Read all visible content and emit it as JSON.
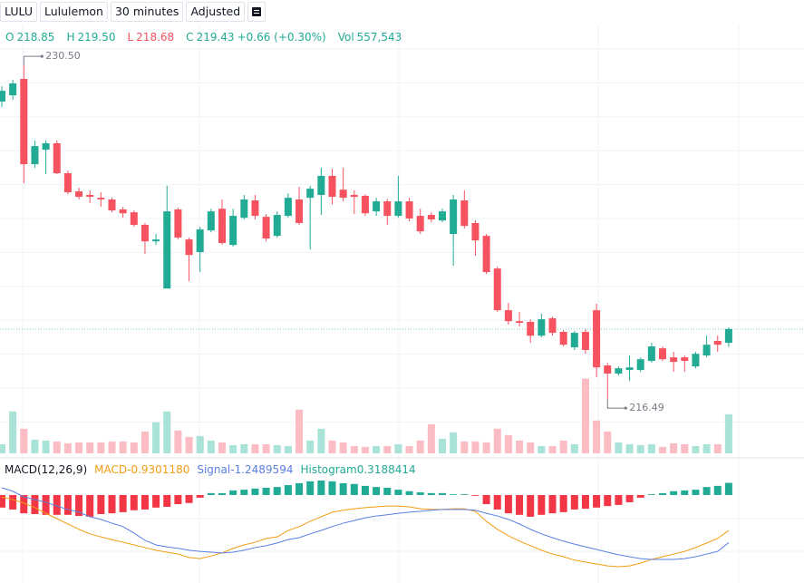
{
  "chart_data": {
    "type": "candlestick",
    "symbol": "LULU",
    "name": "Lululemon",
    "interval": "30 minutes",
    "adjustment": "Adjusted",
    "legend": [
      {
        "key": "O",
        "value": "218.85",
        "color": "#22ab94"
      },
      {
        "key": "H",
        "value": "219.50",
        "color": "#22ab94"
      },
      {
        "key": "L",
        "value": "218.68",
        "color": "#f7525f"
      },
      {
        "key": "C",
        "value": "219.43",
        "color": "#22ab94"
      }
    ],
    "change": "+0.66 (+0.30%)",
    "volume_legend": {
      "key": "Vol",
      "value": "557,543"
    },
    "open": [
      228.98,
      229.24,
      229.93,
      226.35,
      226.96,
      227.23,
      225.97,
      225.21,
      225.06,
      224.94,
      224.87,
      224.45,
      224.33,
      223.8,
      223.11,
      221.13,
      224.45,
      223.19,
      222.66,
      223.57,
      224.48,
      222.96,
      224.1,
      224.83,
      224.14,
      223.34,
      224.18,
      224.87,
      224.94,
      225.06,
      225.86,
      225.28,
      225.06,
      225.02,
      224.37,
      224.79,
      224.18,
      224.79,
      224.18,
      224.22,
      223.99,
      223.42,
      224.83,
      223.88,
      223.34,
      221.97,
      220.22,
      219.76,
      219.73,
      219.15,
      219.88,
      219.31,
      218.66,
      219.31,
      220.22,
      217.9,
      217.56,
      217.71,
      217.71,
      218.09,
      218.62,
      218.24,
      218.24,
      217.86,
      218.32,
      218.93,
      218.85
    ],
    "high": [
      229.62,
      229.89,
      230.5,
      227.34,
      227.34,
      227.34,
      226.08,
      225.36,
      225.25,
      225.17,
      224.94,
      224.56,
      224.41,
      223.88,
      223.42,
      225.44,
      224.52,
      223.27,
      223.72,
      224.48,
      224.87,
      224.48,
      225.06,
      225.06,
      224.26,
      224.37,
      225.13,
      225.4,
      225.44,
      226.2,
      226.16,
      226.2,
      225.25,
      225.09,
      224.94,
      224.9,
      225.86,
      224.94,
      224.48,
      224.33,
      224.48,
      225.06,
      225.25,
      223.99,
      223.42,
      222.05,
      220.53,
      220.14,
      219.84,
      220.07,
      219.95,
      219.38,
      219.34,
      219.42,
      220.49,
      218.01,
      217.86,
      218.32,
      218.24,
      218.85,
      218.7,
      218.47,
      218.32,
      218.47,
      219.15,
      219.15,
      219.5
    ],
    "low": [
      228.75,
      229.05,
      225.55,
      226.2,
      225.93,
      225.93,
      225.09,
      224.87,
      224.71,
      224.56,
      224.33,
      224.1,
      223.72,
      222.58,
      222.96,
      221.13,
      223.19,
      221.44,
      221.82,
      223.49,
      222.96,
      222.89,
      224.03,
      224.03,
      223.11,
      223.27,
      224.1,
      223.8,
      222.77,
      224.22,
      224.67,
      224.79,
      224.26,
      224.18,
      224.18,
      223.8,
      224.1,
      223.95,
      223.42,
      223.91,
      223.91,
      222.09,
      223.65,
      222.5,
      221.74,
      220.14,
      219.61,
      219.54,
      218.85,
      219.08,
      219.15,
      218.7,
      218.55,
      218.39,
      217.4,
      216.49,
      217.48,
      217.25,
      217.63,
      218.01,
      218.09,
      217.63,
      217.63,
      217.78,
      218.24,
      218.47,
      218.68
    ],
    "close": [
      229.43,
      229.74,
      226.35,
      227.11,
      227.23,
      225.97,
      225.17,
      224.98,
      224.98,
      224.87,
      224.41,
      224.29,
      223.8,
      223.11,
      223.19,
      224.37,
      223.27,
      222.54,
      223.61,
      224.37,
      223.04,
      224.18,
      224.87,
      224.18,
      223.23,
      224.22,
      224.94,
      223.88,
      225.32,
      225.86,
      224.98,
      224.94,
      224.98,
      224.29,
      224.79,
      224.18,
      224.79,
      224.07,
      223.53,
      224.03,
      224.37,
      224.87,
      223.76,
      223.15,
      221.82,
      220.22,
      219.76,
      219.69,
      219.15,
      219.84,
      219.27,
      218.77,
      219.27,
      218.55,
      217.82,
      217.56,
      217.78,
      217.82,
      218.16,
      218.7,
      218.16,
      218.05,
      218.09,
      218.39,
      218.77,
      218.77,
      219.43
    ],
    "volume": [
      130000,
      598000,
      351000,
      195000,
      182000,
      169000,
      143000,
      156000,
      156000,
      156000,
      169000,
      169000,
      156000,
      312000,
      442000,
      598000,
      325000,
      234000,
      247000,
      182000,
      156000,
      117000,
      130000,
      130000,
      130000,
      117000,
      104000,
      624000,
      182000,
      351000,
      182000,
      156000,
      104000,
      91000,
      104000,
      104000,
      130000,
      104000,
      182000,
      416000,
      208000,
      299000,
      169000,
      169000,
      156000,
      351000,
      260000,
      182000,
      156000,
      104000,
      104000,
      182000,
      130000,
      1066000,
      468000,
      312000,
      156000,
      130000,
      117000,
      130000,
      91000,
      143000,
      130000,
      104000,
      130000,
      130000,
      557543
    ],
    "up_color": "#22ab94",
    "down_color": "#f7525f",
    "volume_up_color": "#a9e2d6",
    "volume_down_color": "#fbbcc4",
    "ylim": [
      214.21,
      231.34
    ],
    "volume_lim": [
      0,
      1500000
    ],
    "grid": true,
    "annotations": [
      {
        "value": 230.5,
        "label": "230.50"
      },
      {
        "value": 216.49,
        "label": "216.49"
      }
    ],
    "indicator": {
      "type": "macd",
      "title": "MACD(12,26,9)",
      "ylim": [
        -2.31,
        0.38
      ],
      "series": [
        {
          "name": "MACD",
          "legend_value": "-0.9301180",
          "color": "#f39c12",
          "values": [
            -0.05,
            -0.12,
            -0.21,
            -0.33,
            -0.48,
            -0.62,
            -0.76,
            -0.9,
            -1.02,
            -1.1,
            -1.17,
            -1.24,
            -1.31,
            -1.38,
            -1.45,
            -1.5,
            -1.55,
            -1.64,
            -1.67,
            -1.6,
            -1.52,
            -1.4,
            -1.31,
            -1.24,
            -1.14,
            -1.1,
            -0.93,
            -0.83,
            -0.69,
            -0.57,
            -0.45,
            -0.4,
            -0.36,
            -0.33,
            -0.31,
            -0.29,
            -0.29,
            -0.31,
            -0.36,
            -0.38,
            -0.38,
            -0.36,
            -0.36,
            -0.43,
            -0.69,
            -0.9,
            -1.07,
            -1.21,
            -1.33,
            -1.45,
            -1.55,
            -1.62,
            -1.71,
            -1.76,
            -1.81,
            -1.86,
            -1.88,
            -1.86,
            -1.79,
            -1.69,
            -1.62,
            -1.55,
            -1.48,
            -1.38,
            -1.26,
            -1.14,
            -0.930118
          ]
        },
        {
          "name": "Signal",
          "legend_value": "-1.2489594",
          "color": "#5b7fe3",
          "values": [
            0.19,
            0.1,
            -0.05,
            -0.12,
            -0.19,
            -0.29,
            -0.38,
            -0.45,
            -0.57,
            -0.64,
            -0.74,
            -0.83,
            -1.0,
            -1.19,
            -1.31,
            -1.36,
            -1.4,
            -1.45,
            -1.48,
            -1.5,
            -1.52,
            -1.5,
            -1.45,
            -1.38,
            -1.33,
            -1.26,
            -1.17,
            -1.12,
            -1.02,
            -0.93,
            -0.83,
            -0.74,
            -0.67,
            -0.6,
            -0.55,
            -0.52,
            -0.48,
            -0.45,
            -0.43,
            -0.4,
            -0.38,
            -0.38,
            -0.38,
            -0.4,
            -0.48,
            -0.55,
            -0.64,
            -0.76,
            -0.9,
            -1.02,
            -1.12,
            -1.21,
            -1.29,
            -1.36,
            -1.43,
            -1.5,
            -1.57,
            -1.62,
            -1.67,
            -1.69,
            -1.69,
            -1.69,
            -1.67,
            -1.62,
            -1.55,
            -1.48,
            -1.2489594
          ]
        },
        {
          "name": "Histogram",
          "legend_value": "0.3188414",
          "color": "#22ab94",
          "up_color": "#22ab94",
          "down_color": "#f23645",
          "values": [
            -0.33,
            -0.38,
            -0.48,
            -0.5,
            -0.52,
            -0.52,
            -0.52,
            -0.55,
            -0.57,
            -0.5,
            -0.48,
            -0.45,
            -0.4,
            -0.38,
            -0.33,
            -0.31,
            -0.24,
            -0.21,
            -0.07,
            0.05,
            0.05,
            0.12,
            0.14,
            0.17,
            0.19,
            0.21,
            0.26,
            0.31,
            0.36,
            0.38,
            0.36,
            0.31,
            0.29,
            0.24,
            0.21,
            0.19,
            0.14,
            0.1,
            0.07,
            0.05,
            0.05,
            0.02,
            0.02,
            -0.02,
            -0.24,
            -0.38,
            -0.48,
            -0.52,
            -0.57,
            -0.52,
            -0.48,
            -0.45,
            -0.38,
            -0.36,
            -0.33,
            -0.29,
            -0.26,
            -0.19,
            -0.07,
            0.02,
            0.05,
            0.1,
            0.12,
            0.14,
            0.21,
            0.24,
            0.3188414
          ]
        }
      ]
    }
  }
}
